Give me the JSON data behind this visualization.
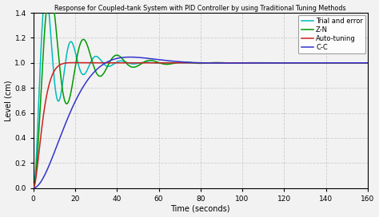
{
  "title": "Response for Coupled-tank System with PID Controller by using Traditional Tuning Methods",
  "xlabel": "Time (seconds)",
  "ylabel": "Level (cm)",
  "xlim": [
    0,
    160
  ],
  "ylim": [
    0,
    1.4
  ],
  "yticks": [
    0,
    0.2,
    0.4,
    0.6,
    0.8,
    1.0,
    1.2,
    1.4
  ],
  "xticks": [
    0,
    20,
    40,
    60,
    80,
    100,
    120,
    140,
    160
  ],
  "legend": [
    "Trial and error",
    "Z-N",
    "Auto-tuning",
    "C-C"
  ],
  "colors": {
    "trial_and_error": "#3333CC",
    "zn": "#009900",
    "auto_tuning": "#CC2222",
    "cc": "#00BBBB"
  },
  "background_color": "#F2F2F2",
  "grid_color": "#CCCCCC"
}
